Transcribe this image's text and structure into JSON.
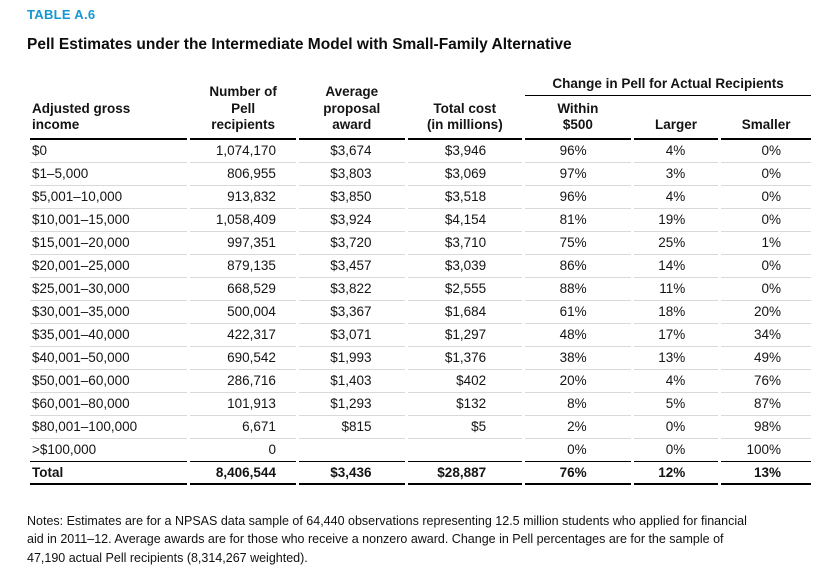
{
  "colors": {
    "accent_blue": "#1696d2",
    "row_line_gray": "#d9d9d9",
    "rule_black": "#000000"
  },
  "header": {
    "table_label": "TABLE A.6",
    "title": "Pell Estimates under the Intermediate Model with Small-Family Alternative"
  },
  "table": {
    "group_header": "Change in Pell for Actual Recipients",
    "header": {
      "col1": [
        "Adjusted gross",
        "income"
      ],
      "col2": [
        "Number of",
        "Pell",
        "recipients"
      ],
      "col3": [
        "Average",
        "proposal",
        "award"
      ],
      "col4": [
        "Total cost",
        "(in millions)"
      ],
      "col5": [
        "Within",
        "$500"
      ],
      "col6": [
        "Larger"
      ],
      "col7": [
        "Smaller"
      ]
    },
    "rows": [
      [
        "$0",
        "1,074,170",
        "$3,674",
        "$3,946",
        "96%",
        "4%",
        "0%"
      ],
      [
        "$1–5,000",
        "806,955",
        "$3,803",
        "$3,069",
        "97%",
        "3%",
        "0%"
      ],
      [
        "$5,001–10,000",
        "913,832",
        "$3,850",
        "$3,518",
        "96%",
        "4%",
        "0%"
      ],
      [
        "$10,001–15,000",
        "1,058,409",
        "$3,924",
        "$4,154",
        "81%",
        "19%",
        "0%"
      ],
      [
        "$15,001–20,000",
        "997,351",
        "$3,720",
        "$3,710",
        "75%",
        "25%",
        "1%"
      ],
      [
        "$20,001–25,000",
        "879,135",
        "$3,457",
        "$3,039",
        "86%",
        "14%",
        "0%"
      ],
      [
        "$25,001–30,000",
        "668,529",
        "$3,822",
        "$2,555",
        "88%",
        "11%",
        "0%"
      ],
      [
        "$30,001–35,000",
        "500,004",
        "$3,367",
        "$1,684",
        "61%",
        "18%",
        "20%"
      ],
      [
        "$35,001–40,000",
        "422,317",
        "$3,071",
        "$1,297",
        "48%",
        "17%",
        "34%"
      ],
      [
        "$40,001–50,000",
        "690,542",
        "$1,993",
        "$1,376",
        "38%",
        "13%",
        "49%"
      ],
      [
        "$50,001–60,000",
        "286,716",
        "$1,403",
        "$402",
        "20%",
        "4%",
        "76%"
      ],
      [
        "$60,001–80,000",
        "101,913",
        "$1,293",
        "$132",
        "8%",
        "5%",
        "87%"
      ],
      [
        "$80,001–100,000",
        "6,671",
        "$815",
        "$5",
        "2%",
        "0%",
        "98%"
      ],
      [
        ">$100,000",
        "0",
        "",
        "",
        "0%",
        "0%",
        "100%"
      ]
    ],
    "total_row": [
      "Total",
      "8,406,544",
      "$3,436",
      "$28,887",
      "76%",
      "12%",
      "13%"
    ]
  },
  "notes": {
    "lines": [
      "Notes: Estimates are for a NPSAS data sample of 64,440 observations representing 12.5 million students who applied for financial",
      "aid in 2011–12. Average awards are for those who receive a nonzero award. Change in Pell percentages are for the sample of",
      "47,190 actual Pell recipients (8,314,267 weighted)."
    ]
  }
}
